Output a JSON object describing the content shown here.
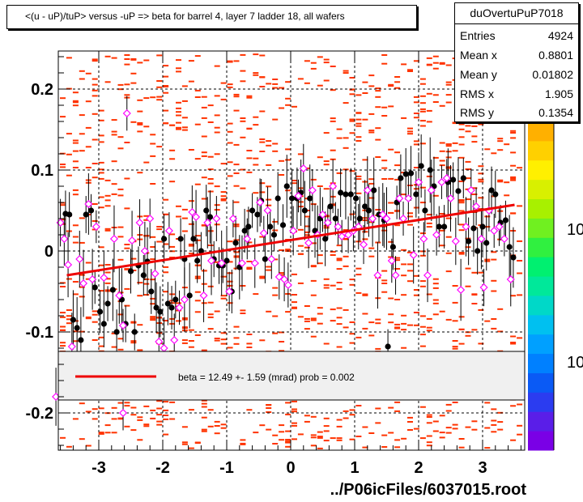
{
  "title": "<(u - uP)/tuP> versus  -uP => beta for barrel 4, layer 7 ladder 18, all wafers",
  "stats_box": {
    "name": "duOvertuPuP7018",
    "rows": [
      {
        "label": "Entries",
        "value": "4924"
      },
      {
        "label": "Mean x",
        "value": "0.8801"
      },
      {
        "label": "Mean y",
        "value": "0.01802"
      },
      {
        "label": "RMS x",
        "value": "1.905"
      },
      {
        "label": "RMS y",
        "value": "0.1354"
      }
    ]
  },
  "legend_text": "beta =    12.49 +-   1.59 (mrad) prob = 0.002",
  "footer": "../P06icFiles/6037015.root",
  "colorbar_labels": [
    "10",
    "10"
  ],
  "colors": {
    "histogram": "#ff3300",
    "profile_filled": "#000000",
    "profile_open": "#ff00ff",
    "fit_line": "#ee0000",
    "legend_bg": "#f0f0f0"
  },
  "chart_data": {
    "type": "scatter",
    "xlim": [
      -3.7,
      3.7
    ],
    "ylim": [
      -0.25,
      0.25
    ],
    "x_ticks": [
      -3,
      -2,
      -1,
      0,
      1,
      2,
      3
    ],
    "x_tick_labels": [
      "-3",
      "-2",
      "-1",
      "0",
      "1",
      "2",
      "3"
    ],
    "y_ticks": [
      -0.2,
      -0.1,
      0,
      0.1,
      0.2
    ],
    "y_tick_labels": [
      "-0.2",
      "-0.1",
      "0",
      "0.1",
      "0.2"
    ],
    "grid": true,
    "fit_line": {
      "x": [
        -3.5,
        3.5
      ],
      "y": [
        -0.03,
        0.057
      ]
    },
    "series": [
      {
        "marker": "filled-circle",
        "points": [
          [
            -3.52,
            0.046
          ],
          [
            -3.46,
            0.045
          ],
          [
            -3.4,
            -0.085
          ],
          [
            -3.34,
            -0.095
          ],
          [
            -3.28,
            -0.11
          ],
          [
            -3.2,
            0.045
          ],
          [
            -3.12,
            0.05
          ],
          [
            -3.06,
            -0.045
          ],
          [
            -2.98,
            -0.075
          ],
          [
            -2.92,
            -0.09
          ],
          [
            -2.86,
            -0.065
          ],
          [
            -2.78,
            -0.048
          ],
          [
            -2.72,
            -0.1
          ],
          [
            -2.64,
            -0.06
          ],
          [
            -2.58,
            -0.09
          ],
          [
            -2.5,
            -0.025
          ],
          [
            -2.44,
            -0.1
          ],
          [
            -2.38,
            -0.018
          ],
          [
            -2.3,
            -0.03
          ],
          [
            -2.24,
            -0.013
          ],
          [
            -2.18,
            -0.05
          ],
          [
            -2.1,
            -0.07
          ],
          [
            -2.04,
            -0.075
          ],
          [
            -1.98,
            0.015
          ],
          [
            -1.92,
            -0.065
          ],
          [
            -1.86,
            -0.07
          ],
          [
            -1.8,
            -0.06
          ],
          [
            -1.72,
            0.015
          ],
          [
            -1.66,
            -0.01
          ],
          [
            -1.58,
            -0.055
          ],
          [
            -1.52,
            0.015
          ],
          [
            -1.46,
            -0.012
          ],
          [
            -1.4,
            0.0
          ],
          [
            -1.32,
            0.05
          ],
          [
            -1.26,
            0.042
          ],
          [
            -1.2,
            -0.01
          ],
          [
            -1.12,
            -0.018
          ],
          [
            -1.06,
            -0.018
          ],
          [
            -1.0,
            -0.012
          ],
          [
            -0.92,
            -0.05
          ],
          [
            -0.86,
            0.01
          ],
          [
            -0.8,
            -0.02
          ],
          [
            -0.72,
            0.025
          ],
          [
            -0.66,
            0.03
          ],
          [
            -0.6,
            0.05
          ],
          [
            -0.52,
            0.045
          ],
          [
            -0.46,
            0.062
          ],
          [
            -0.4,
            -0.01
          ],
          [
            -0.32,
            0.03
          ],
          [
            -0.26,
            0.02
          ],
          [
            -0.2,
            0.065
          ],
          [
            -0.12,
            0.032
          ],
          [
            -0.06,
            0.08
          ],
          [
            0.02,
            0.065
          ],
          [
            0.1,
            0.065
          ],
          [
            0.16,
            0.072
          ],
          [
            0.22,
            0.05
          ],
          [
            0.3,
            0.065
          ],
          [
            0.38,
            0.025
          ],
          [
            0.46,
            0.04
          ],
          [
            0.54,
            0.015
          ],
          [
            0.62,
            0.055
          ],
          [
            0.7,
            0.04
          ],
          [
            0.78,
            0.072
          ],
          [
            0.86,
            0.07
          ],
          [
            0.94,
            0.07
          ],
          [
            1.02,
            0.065
          ],
          [
            1.08,
            0.04
          ],
          [
            1.16,
            0.055
          ],
          [
            1.22,
            0.05
          ],
          [
            1.3,
            0.075
          ],
          [
            1.38,
            0.045
          ],
          [
            1.46,
            0.038
          ],
          [
            1.52,
            -0.118
          ],
          [
            1.6,
            0.005
          ],
          [
            1.66,
            0.06
          ],
          [
            1.72,
            0.09
          ],
          [
            1.8,
            0.095
          ],
          [
            1.88,
            0.096
          ],
          [
            1.96,
            0.07
          ],
          [
            2.04,
            0.105
          ],
          [
            2.1,
            0.05
          ],
          [
            2.18,
            0.1
          ],
          [
            2.24,
            0.08
          ],
          [
            2.32,
            0.03
          ],
          [
            2.4,
            0.03
          ],
          [
            2.46,
            0.085
          ],
          [
            2.54,
            0.088
          ],
          [
            2.62,
            0.074
          ],
          [
            2.7,
            0.09
          ],
          [
            2.78,
            0.012
          ],
          [
            2.86,
            0.028
          ],
          [
            2.92,
            0.0
          ],
          [
            3.0,
            0.03
          ],
          [
            3.06,
            0.01
          ],
          [
            3.14,
            0.075
          ],
          [
            3.2,
            0.07
          ],
          [
            3.28,
            0.035
          ],
          [
            3.36,
            0.038
          ],
          [
            3.42,
            0.005
          ],
          [
            3.48,
            -0.008
          ]
        ]
      },
      {
        "marker": "open-diamond",
        "points": [
          [
            -3.6,
            0.035
          ],
          [
            -3.54,
            0.015
          ],
          [
            -3.48,
            -0.017
          ],
          [
            -3.42,
            -0.118
          ],
          [
            -3.3,
            -0.01
          ],
          [
            -3.24,
            -0.04
          ],
          [
            -3.16,
            0.058
          ],
          [
            -3.1,
            -0.035
          ],
          [
            -3.04,
            0.03
          ],
          [
            -2.92,
            -0.033
          ],
          [
            -2.76,
            0.015
          ],
          [
            -2.68,
            -0.055
          ],
          [
            -2.62,
            -0.092
          ],
          [
            -2.56,
            0.17
          ],
          [
            -2.48,
            0.013
          ],
          [
            -2.36,
            0.035
          ],
          [
            -2.28,
            0.0
          ],
          [
            -2.2,
            0.04
          ],
          [
            -2.12,
            -0.028
          ],
          [
            -2.06,
            -0.112
          ],
          [
            -1.98,
            -0.12
          ],
          [
            -1.9,
            0.025
          ],
          [
            -1.82,
            -0.11
          ],
          [
            -1.74,
            -0.07
          ],
          [
            -1.66,
            -0.06
          ],
          [
            -1.54,
            0.048
          ],
          [
            -1.48,
            0.042
          ],
          [
            -1.36,
            -0.055
          ],
          [
            -1.3,
            0.035
          ],
          [
            -1.24,
            -0.012
          ],
          [
            -1.16,
            0.04
          ],
          [
            -1.08,
            -0.015
          ],
          [
            -0.96,
            -0.05
          ],
          [
            -0.9,
            0.04
          ],
          [
            -0.76,
            -0.015
          ],
          [
            -0.68,
            0.015
          ],
          [
            -0.56,
            -0.015
          ],
          [
            -0.48,
            0.06
          ],
          [
            -0.42,
            0.022
          ],
          [
            -0.36,
            0.05
          ],
          [
            -0.3,
            -0.01
          ],
          [
            -0.18,
            -0.032
          ],
          [
            -0.1,
            -0.035
          ],
          [
            -0.04,
            -0.042
          ],
          [
            0.04,
            0.025
          ],
          [
            0.12,
            0.068
          ],
          [
            0.2,
            0.102
          ],
          [
            0.28,
            0.01
          ],
          [
            0.34,
            0.075
          ],
          [
            0.42,
            0.02
          ],
          [
            0.5,
            0.045
          ],
          [
            0.58,
            0.035
          ],
          [
            0.66,
            0.08
          ],
          [
            0.74,
            0.03
          ],
          [
            0.8,
            0.018
          ],
          [
            0.9,
            0.02
          ],
          [
            0.98,
            0.025
          ],
          [
            1.06,
            0.03
          ],
          [
            1.14,
            0.008
          ],
          [
            1.2,
            0.075
          ],
          [
            1.28,
            0.04
          ],
          [
            1.36,
            -0.03
          ],
          [
            1.44,
            0.045
          ],
          [
            1.5,
            0.04
          ],
          [
            1.58,
            -0.012
          ],
          [
            1.64,
            -0.03
          ],
          [
            1.7,
            0.065
          ],
          [
            1.76,
            0.04
          ],
          [
            1.84,
            0.065
          ],
          [
            1.92,
            -0.005
          ],
          [
            2.0,
            0.085
          ],
          [
            2.08,
            0.015
          ],
          [
            2.14,
            -0.03
          ],
          [
            2.2,
            0.075
          ],
          [
            2.28,
            0.02
          ],
          [
            2.36,
            0.085
          ],
          [
            2.44,
            0.09
          ],
          [
            2.5,
            0.065
          ],
          [
            2.58,
            0.012
          ],
          [
            2.66,
            -0.048
          ],
          [
            2.74,
            0.03
          ],
          [
            2.82,
            0.075
          ],
          [
            2.9,
            0.055
          ],
          [
            2.98,
            0.015
          ],
          [
            3.02,
            -0.045
          ],
          [
            3.1,
            0.05
          ],
          [
            3.18,
            0.025
          ],
          [
            3.26,
            0.03
          ],
          [
            3.34,
            0.015
          ],
          [
            3.44,
            -0.035
          ]
        ]
      },
      {
        "marker": "open-diamond",
        "points": [
          [
            -3.67,
            -0.18
          ],
          [
            -2.62,
            -0.2
          ]
        ]
      }
    ]
  }
}
